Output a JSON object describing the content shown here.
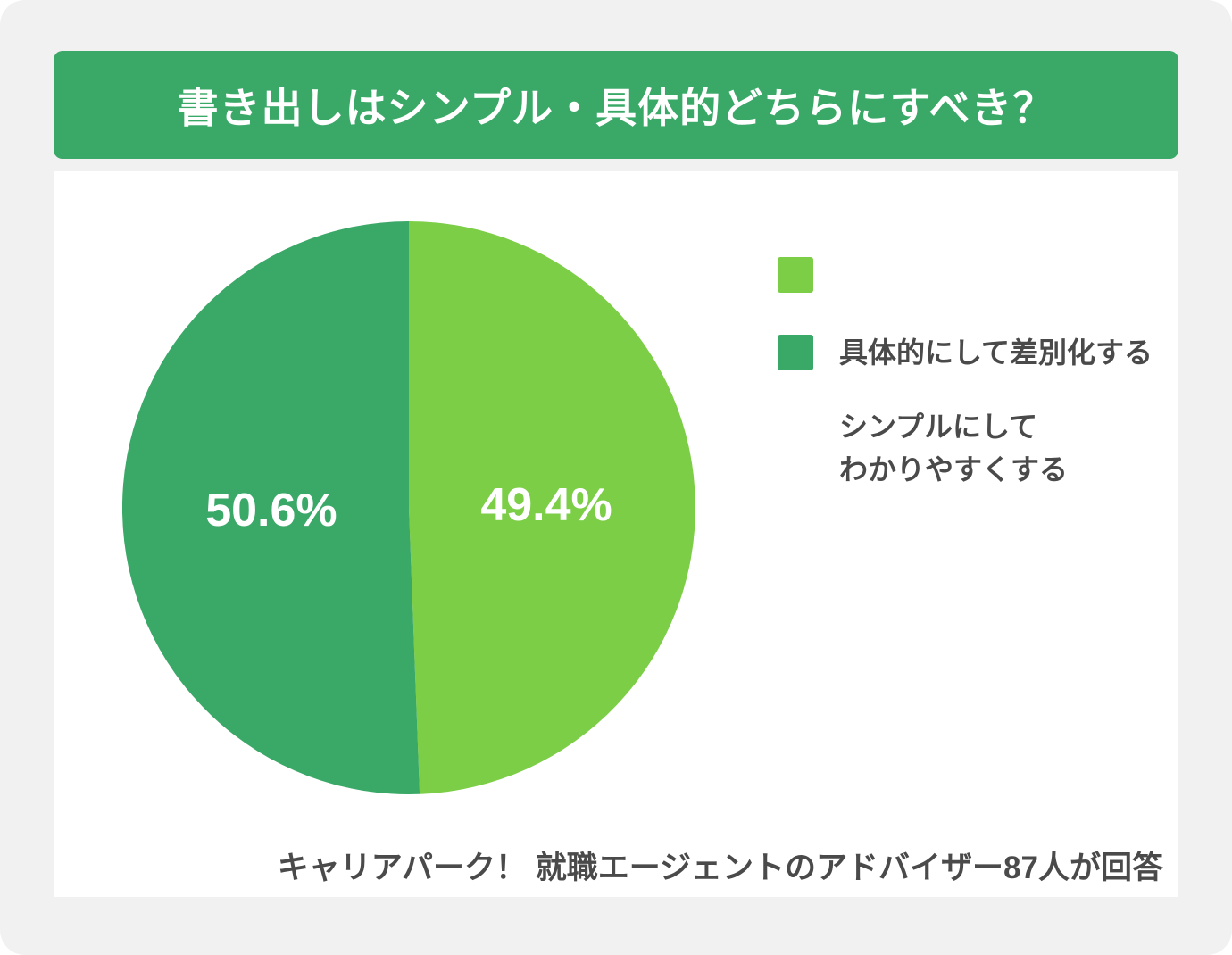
{
  "page": {
    "background_color": "#f1f1f2",
    "card_color": "#ffffff"
  },
  "header": {
    "title": "書き出しはシンプル・具体的どちらにすべき？",
    "banner_color": "#3aa867",
    "title_color": "#ffffff"
  },
  "chart_data": {
    "type": "pie",
    "title": "書き出しはシンプル・具体的どちらにすべき？",
    "start_angle": "top",
    "direction": "clockwise",
    "unit": "%",
    "slices": [
      {
        "id": "simple",
        "label": "シンプルにしてわかりやすくする",
        "value": 49.4,
        "display_value": "49.4%",
        "color": "#7cce47"
      },
      {
        "id": "specific",
        "label": "具体的にして差別化する",
        "value": 50.6,
        "display_value": "50.6%",
        "color": "#3aa867"
      }
    ],
    "legend_position": "right",
    "source": "キャリアパーク！ 就職エージェントのアドバイザー87人が回答"
  },
  "legend": {
    "text_color": "#4a4a4a",
    "items": [
      {
        "id": "simple",
        "lines": [
          "シンプルにして",
          "わかりやすくする"
        ],
        "color": "#7cce47"
      },
      {
        "id": "specific",
        "lines": [
          "具体的にして差別化する"
        ],
        "color": "#3aa867"
      }
    ]
  },
  "footer": {
    "source_note": "キャリアパーク！ 就職エージェントのアドバイザー87人が回答",
    "text_color": "#4a4a4a"
  }
}
